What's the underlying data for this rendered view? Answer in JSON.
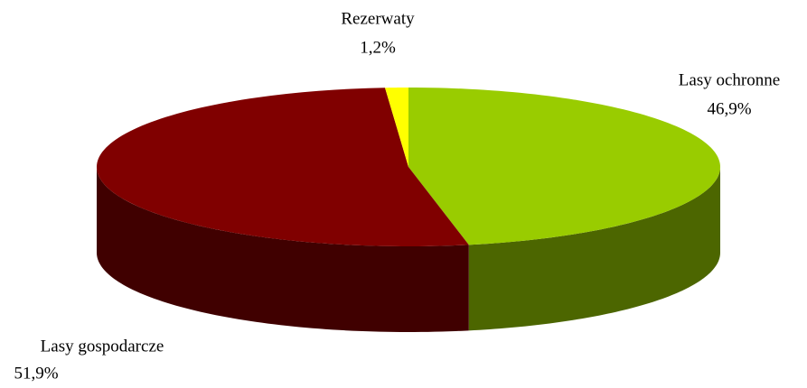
{
  "chart_data": {
    "type": "pie3d",
    "categories": [
      "Lasy ochronne",
      "Lasy gospodarcze",
      "Rezerwaty"
    ],
    "values": [
      46.9,
      51.9,
      1.2
    ],
    "value_labels": [
      "46,9%",
      "51,9%",
      "1,2%"
    ],
    "colors": [
      "#99cc00",
      "#800000",
      "#ffff00"
    ]
  }
}
